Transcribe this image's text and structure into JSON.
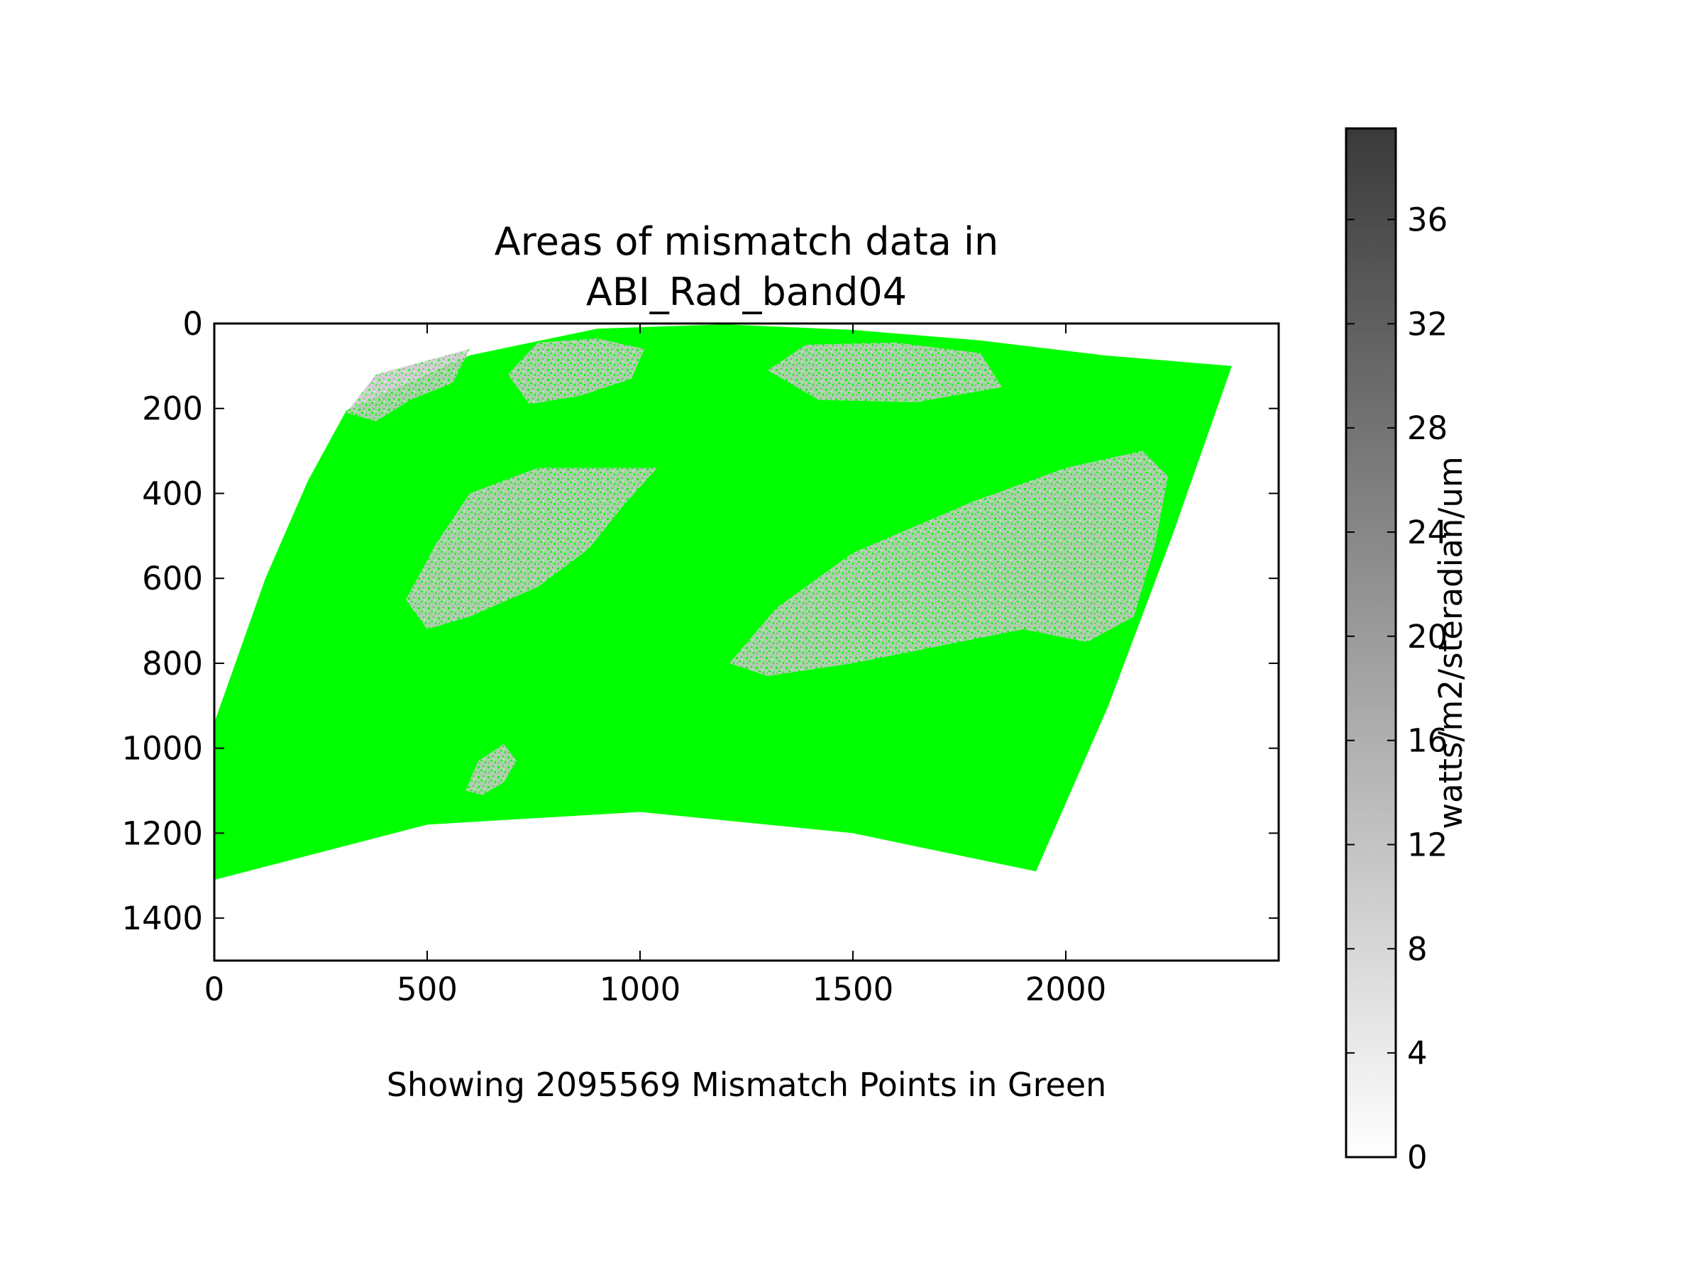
{
  "chart_data": {
    "type": "heatmap",
    "title_lines": [
      "Areas of mismatch data in",
      "ABI_Rad_band04"
    ],
    "xlabel": "",
    "ylabel": "",
    "x_ticks": [
      "0",
      "500",
      "1000",
      "1500",
      "2000"
    ],
    "y_ticks": [
      "0",
      "200",
      "400",
      "600",
      "800",
      "1000",
      "1200",
      "1400"
    ],
    "xlim": [
      0,
      2500
    ],
    "ylim": [
      1500,
      0
    ],
    "y_inverted": true,
    "grid": false,
    "colormap": "gray_r",
    "colorbar": {
      "label": "watts/m2/steradian/um",
      "ticks": [
        "0",
        "4",
        "8",
        "12",
        "16",
        "20",
        "24",
        "28",
        "32",
        "36"
      ],
      "range": [
        0,
        39.5
      ],
      "low_color": "#ffffff",
      "high_color": "#3a3a3a"
    },
    "mismatch_color": "#00ff00",
    "mismatch_count": 2095569,
    "footer_note": "Showing 2095569 Mismatch Points in Green",
    "data_region_boundary": [
      [
        0,
        940
      ],
      [
        120,
        600
      ],
      [
        220,
        370
      ],
      [
        310,
        205
      ],
      [
        600,
        75
      ],
      [
        900,
        12
      ],
      [
        1200,
        2
      ],
      [
        1500,
        15
      ],
      [
        1800,
        40
      ],
      [
        2090,
        75
      ],
      [
        2390,
        100
      ],
      [
        2250,
        500
      ],
      [
        2100,
        900
      ],
      [
        1930,
        1290
      ],
      [
        1500,
        1200
      ],
      [
        1000,
        1150
      ],
      [
        500,
        1180
      ],
      [
        0,
        1310
      ]
    ],
    "cloud_regions": [
      {
        "name": "top-left-cloud",
        "outline": [
          [
            310,
            210
          ],
          [
            380,
            120
          ],
          [
            600,
            60
          ],
          [
            560,
            140
          ],
          [
            460,
            180
          ],
          [
            380,
            230
          ]
        ]
      },
      {
        "name": "top-center-cloud",
        "outline": [
          [
            690,
            120
          ],
          [
            760,
            45
          ],
          [
            900,
            35
          ],
          [
            1010,
            60
          ],
          [
            980,
            130
          ],
          [
            860,
            170
          ],
          [
            740,
            190
          ]
        ]
      },
      {
        "name": "top-right-cloud",
        "outline": [
          [
            1300,
            110
          ],
          [
            1390,
            50
          ],
          [
            1600,
            45
          ],
          [
            1800,
            70
          ],
          [
            1850,
            150
          ],
          [
            1650,
            185
          ],
          [
            1420,
            180
          ]
        ]
      },
      {
        "name": "middle-left-cloud",
        "outline": [
          [
            450,
            650
          ],
          [
            520,
            520
          ],
          [
            600,
            400
          ],
          [
            760,
            340
          ],
          [
            1040,
            340
          ],
          [
            960,
            430
          ],
          [
            880,
            530
          ],
          [
            760,
            620
          ],
          [
            600,
            690
          ],
          [
            500,
            720
          ]
        ]
      },
      {
        "name": "middle-right-cloud",
        "outline": [
          [
            1210,
            800
          ],
          [
            1320,
            670
          ],
          [
            1500,
            540
          ],
          [
            1780,
            420
          ],
          [
            2000,
            340
          ],
          [
            2180,
            300
          ],
          [
            2240,
            360
          ],
          [
            2210,
            520
          ],
          [
            2160,
            690
          ],
          [
            2050,
            750
          ],
          [
            1900,
            720
          ],
          [
            1700,
            760
          ],
          [
            1500,
            800
          ],
          [
            1300,
            830
          ]
        ]
      },
      {
        "name": "lower-small-cloud",
        "outline": [
          [
            590,
            1100
          ],
          [
            620,
            1030
          ],
          [
            680,
            990
          ],
          [
            710,
            1030
          ],
          [
            680,
            1080
          ],
          [
            630,
            1110
          ]
        ]
      }
    ]
  }
}
